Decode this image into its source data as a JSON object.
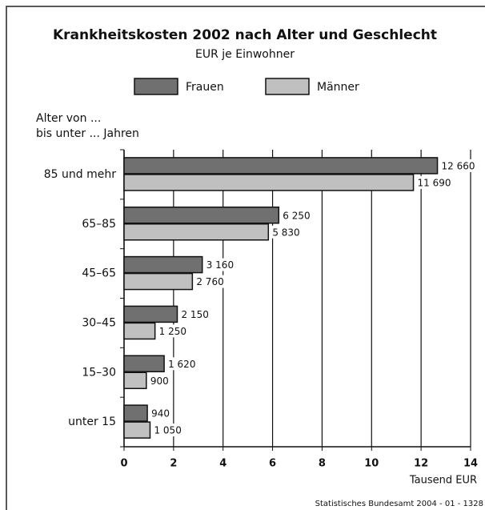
{
  "chart_data": {
    "type": "hbar",
    "title": "Krankheitskosten 2002 nach Alter und Geschlecht",
    "subtitle": "EUR je Einwohner",
    "y_label": [
      "Alter von ...",
      "bis unter ... Jahren"
    ],
    "x_label": "Tausend EUR",
    "source": "Statistisches Bundesamt 2004 - 01 - 1328",
    "categories": [
      "85 und mehr",
      "65–85",
      "45–65",
      "30–45",
      "15–30",
      "unter 15"
    ],
    "series": [
      {
        "name": "Frauen",
        "color": "#707070",
        "values": [
          12.66,
          6.25,
          3.16,
          2.15,
          1.62,
          0.94
        ],
        "value_labels": [
          "12 660",
          "6 250",
          "3 160",
          "2 150",
          "1 620",
          "940"
        ]
      },
      {
        "name": "Männer",
        "color": "#c0c0c0",
        "values": [
          11.69,
          5.83,
          2.76,
          1.25,
          0.9,
          1.05
        ],
        "value_labels": [
          "11 690",
          "5 830",
          "2 760",
          "1 250",
          "900",
          "1 050"
        ]
      }
    ],
    "xlim": [
      0,
      14
    ],
    "xticks": [
      0,
      2,
      4,
      6,
      8,
      10,
      12,
      14
    ],
    "grid": true
  }
}
